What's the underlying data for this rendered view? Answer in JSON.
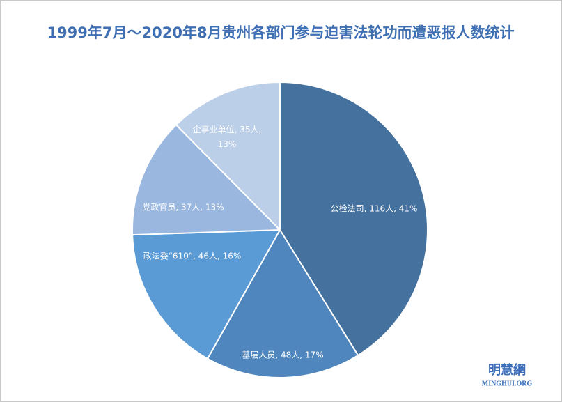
{
  "chart_data": {
    "type": "pie",
    "title": "1999年7月～2020年8月贵州各部门参与迫害法轮功而遭恶报人数统计",
    "values": [
      116,
      48,
      46,
      37,
      35
    ],
    "value_labels": [
      "公检法司, 116人, 41%",
      "基层人员, 48人, 17%",
      "政法委“610”, 46人, 16%",
      "党政官员, 37人, 13%",
      "企事业单位, 35人, 13%"
    ],
    "colors": [
      "#44719e",
      "#4e86bd",
      "#5b9bd5",
      "#9ab7df",
      "#bccfe9"
    ]
  },
  "watermark": {
    "name": "明慧網",
    "site": "MINGHUI.ORG"
  }
}
